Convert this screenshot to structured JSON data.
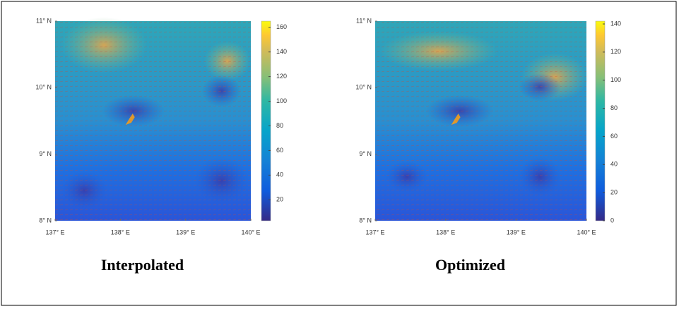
{
  "chart_data": [
    {
      "type": "heatmap",
      "caption": "Interpolated",
      "xlim": [
        137,
        140
      ],
      "xticks": [
        {
          "value": 137,
          "label": "137° E"
        },
        {
          "value": 138,
          "label": "138° E"
        },
        {
          "value": 139,
          "label": "139° E"
        },
        {
          "value": 140,
          "label": "140° E"
        }
      ],
      "ylim": [
        8,
        11
      ],
      "yticks": [
        {
          "value": 8,
          "label": "8° N"
        },
        {
          "value": 9,
          "label": "9° N"
        },
        {
          "value": 10,
          "label": "10° N"
        },
        {
          "value": 11,
          "label": "11° N"
        }
      ],
      "clim": [
        3,
        165
      ],
      "cticks": [
        20,
        40,
        60,
        80,
        100,
        120,
        140,
        160
      ]
    },
    {
      "type": "heatmap",
      "caption": "Optimized",
      "xlim": [
        137,
        140
      ],
      "xticks": [
        {
          "value": 137,
          "label": "137° E"
        },
        {
          "value": 138,
          "label": "138° E"
        },
        {
          "value": 139,
          "label": "139° E"
        },
        {
          "value": 140,
          "label": "140° E"
        }
      ],
      "ylim": [
        8,
        11
      ],
      "yticks": [
        {
          "value": 8,
          "label": "8° N"
        },
        {
          "value": 9,
          "label": "9° N"
        },
        {
          "value": 10,
          "label": "10° N"
        },
        {
          "value": 11,
          "label": "11° N"
        }
      ],
      "clim": [
        0,
        142
      ],
      "cticks": [
        0,
        20,
        40,
        60,
        80,
        100,
        120,
        140
      ]
    }
  ]
}
